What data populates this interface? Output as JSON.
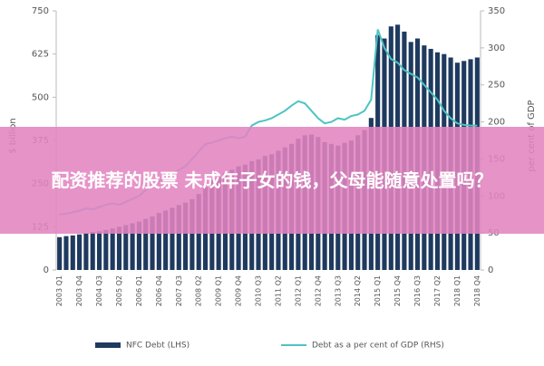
{
  "chart_data": {
    "type": "bar-line",
    "banner": "配资推荐的股票 未成年子女的钱，父母能随意处置吗？",
    "ylabel": "$ billion",
    "y2label": "per cent of GDP",
    "categories": [
      "2003 Q1",
      null,
      null,
      "2003 Q4",
      null,
      null,
      "2004 Q3",
      null,
      null,
      "2005 Q2",
      null,
      null,
      "2006 Q1",
      null,
      null,
      "2006 Q4",
      null,
      null,
      "2007 Q3",
      null,
      null,
      "2008 Q2",
      null,
      null,
      "2009 Q1",
      null,
      null,
      "2009 Q4",
      null,
      null,
      "2010 Q3",
      null,
      null,
      "2011 Q2",
      null,
      null,
      "2012 Q1",
      null,
      null,
      "2012 Q4",
      null,
      null,
      "2013 Q3",
      null,
      null,
      "2014 Q2",
      null,
      null,
      "2015 Q1",
      null,
      null,
      "2015 Q4",
      null,
      null,
      "2016 Q3",
      null,
      null,
      "2017 Q2",
      null,
      null,
      "2018 Q1",
      null,
      null,
      "2018 Q4"
    ],
    "series": [
      {
        "name": "NFC Debt (LHS)",
        "color": "#1f3a5f",
        "type": "bar",
        "values": [
          95,
          98,
          100,
          103,
          106,
          110,
          112,
          116,
          120,
          125,
          130,
          135,
          140,
          148,
          155,
          165,
          172,
          180,
          188,
          195,
          205,
          220,
          240,
          260,
          270,
          280,
          290,
          300,
          305,
          315,
          320,
          330,
          335,
          345,
          355,
          365,
          380,
          390,
          392,
          385,
          370,
          365,
          360,
          368,
          375,
          390,
          405,
          440,
          680,
          670,
          705,
          710,
          690,
          660,
          670,
          650,
          640,
          630,
          625,
          615,
          600,
          605,
          610,
          615
        ]
      },
      {
        "name": "Debt as a per cent of GDP (RHS)",
        "color": "#4dc3c3",
        "type": "line",
        "axis": "y2",
        "values": [
          75,
          76,
          78,
          80,
          83,
          82,
          85,
          88,
          90,
          88,
          92,
          96,
          100,
          108,
          115,
          120,
          125,
          130,
          135,
          140,
          150,
          160,
          170,
          172,
          175,
          178,
          180,
          178,
          180,
          195,
          200,
          202,
          205,
          210,
          215,
          222,
          228,
          225,
          215,
          205,
          198,
          200,
          205,
          203,
          208,
          210,
          215,
          230,
          325,
          300,
          285,
          280,
          270,
          265,
          260,
          250,
          240,
          230,
          215,
          205,
          198,
          196,
          195,
          195
        ]
      }
    ],
    "ylim": [
      0,
      750
    ],
    "yticks": [
      0,
      125,
      250,
      375,
      500,
      625,
      750
    ],
    "y2lim": [
      0,
      350
    ],
    "y2ticks": [
      0,
      50,
      100,
      150,
      200,
      250,
      300,
      350
    ]
  }
}
